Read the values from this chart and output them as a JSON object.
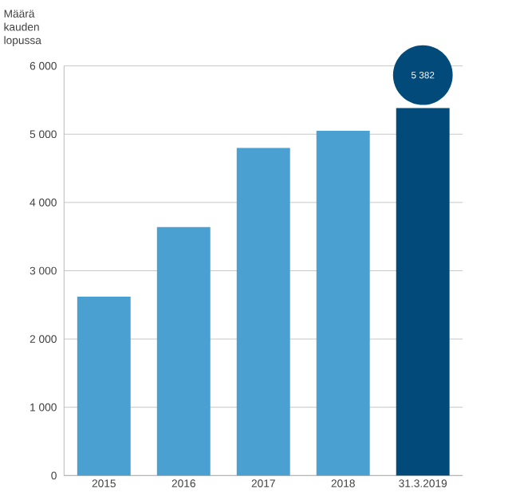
{
  "chart_data": {
    "type": "bar",
    "ylabel": "Määrä kauden lopussa",
    "categories": [
      "2015",
      "2016",
      "2017",
      "2018",
      "31.3.2019"
    ],
    "values": [
      2620,
      3640,
      4800,
      5050,
      5382
    ],
    "colors": [
      "#4aa0d0",
      "#4aa0d0",
      "#4aa0d0",
      "#4aa0d0",
      "#014a7a"
    ],
    "value_labels": [
      null,
      null,
      null,
      null,
      "5 382"
    ],
    "ylim": [
      0,
      6000
    ],
    "yticks": [
      {
        "value": 0,
        "label": "0"
      },
      {
        "value": 1000,
        "label": "1 000"
      },
      {
        "value": 2000,
        "label": "2 000"
      },
      {
        "value": 3000,
        "label": "3 000"
      },
      {
        "value": 4000,
        "label": "4 000"
      },
      {
        "value": 5000,
        "label": "5 000"
      },
      {
        "value": 6000,
        "label": "6 000"
      }
    ],
    "grid": "y"
  }
}
